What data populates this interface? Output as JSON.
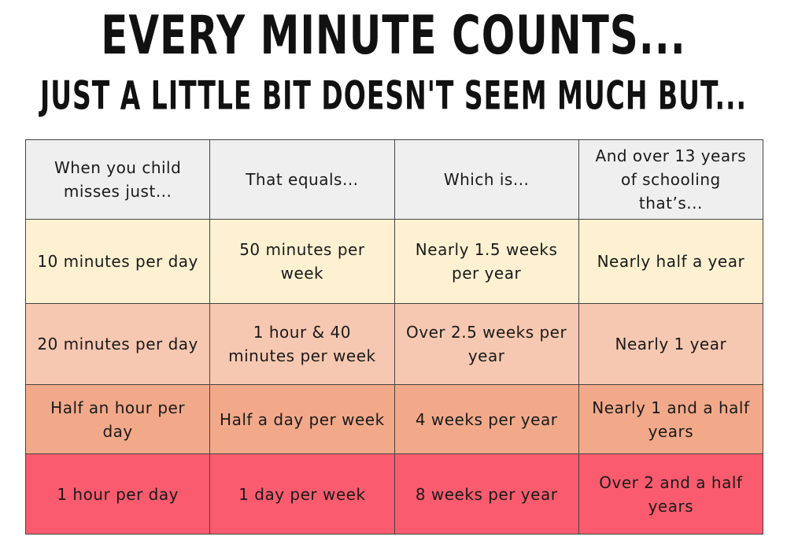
{
  "header": {
    "title": "EVERY MINUTE COUNTS...",
    "subtitle": "JUST A LITTLE BIT DOESN'T SEEM MUCH BUT..."
  },
  "table": {
    "header": [
      "When you child misses just...",
      "That equals...",
      "Which is...",
      "And over 13 years of schooling that’s..."
    ],
    "rows": [
      [
        "10 minutes per day",
        "50 minutes per week",
        "Nearly 1.5 weeks per year",
        "Nearly half a year"
      ],
      [
        "20 minutes per day",
        "1 hour & 40 minutes per week",
        "Over 2.5 weeks per year",
        "Nearly 1 year"
      ],
      [
        "Half an hour per day",
        "Half a day per week",
        "4 weeks per year",
        "Nearly 1 and a half years"
      ],
      [
        "1 hour per day",
        "1 day per week",
        "8 weeks per year",
        "Over 2 and a half years"
      ]
    ]
  }
}
